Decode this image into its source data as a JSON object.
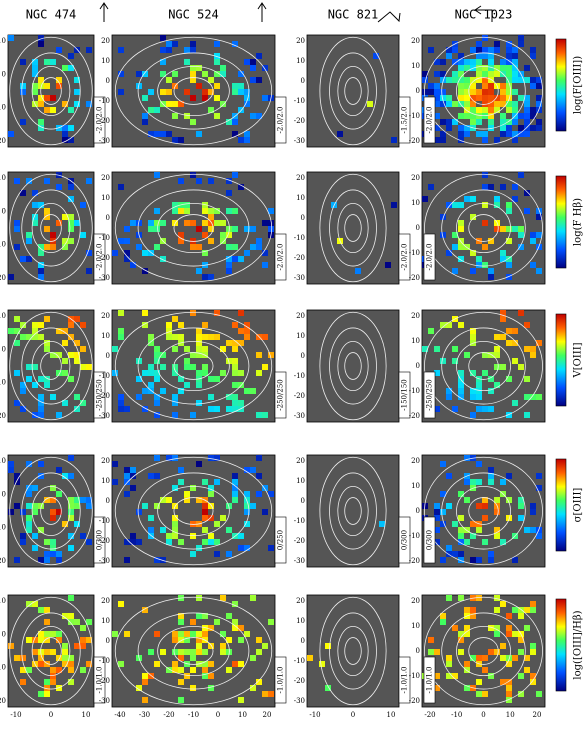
{
  "columns": [
    {
      "title": "NGC 474",
      "yticks": [
        10,
        0,
        -10,
        -20
      ],
      "xticks": [
        -10,
        0,
        10
      ]
    },
    {
      "title": "NGC 524",
      "yticks": [
        20,
        10,
        0,
        -10,
        -20,
        -30
      ],
      "xticks": [
        -40,
        -30,
        -20,
        -10,
        0,
        10,
        20
      ]
    },
    {
      "title": "NGC 821",
      "yticks": [
        20,
        10,
        0,
        -10,
        -20,
        -30
      ],
      "xticks": [
        -10,
        0,
        10
      ]
    },
    {
      "title": "NGC 1023",
      "yticks": [
        20,
        10,
        0,
        -10,
        -20
      ],
      "xticks": [
        -20,
        -10,
        0,
        10,
        20
      ]
    }
  ],
  "rows": [
    {
      "colorbar_label": "log(F[OIII])",
      "ranges": [
        "-2.0/2.0",
        "-2.0/2.0",
        "-1.5/2.0",
        "-2.0/2.0"
      ]
    },
    {
      "colorbar_label": "log(F Hβ)",
      "ranges": [
        "-2.0/2.0",
        "-2.0/2.0",
        "-2.0/2.0",
        "-2.0/2.0"
      ]
    },
    {
      "colorbar_label": "V[OIII]",
      "ranges": [
        "-250/250",
        "-250/250",
        "-150/150",
        "-250/250"
      ]
    },
    {
      "colorbar_label": "σ[OIII]",
      "ranges": [
        "0/300",
        "0/250",
        "0/300",
        "0/300"
      ]
    },
    {
      "colorbar_label": "log([OIII]/Hβ)",
      "ranges": [
        "-1.0/1.0",
        "-1.0/1.0",
        "-1.0/1.0",
        "-1.0/1.0"
      ]
    }
  ]
}
